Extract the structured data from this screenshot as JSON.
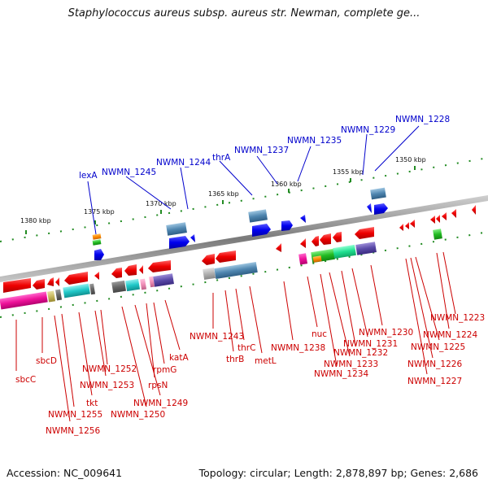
{
  "title": "Staphylococcus aureus subsp. aureus str. Newman, complete ge...",
  "footer": {
    "accession": "Accession: NC_009641",
    "summary": "Topology: circular; Length: 2,878,897 bp; Genes: 2,686"
  },
  "ruler": {
    "ticks": [
      "1380 kbp",
      "1375 kbp",
      "1370 kbp",
      "1365 kbp",
      "1360 kbp",
      "1355 kbp",
      "1350 kbp"
    ]
  },
  "upper_labels": [
    "lexA",
    "NWMN_1245",
    "NWMN_1244",
    "thrA",
    "NWMN_1237",
    "NWMN_1235",
    "NWMN_1229",
    "NWMN_1228"
  ],
  "lower_labels": [
    "sbcC",
    "sbcD",
    "NWMN_1256",
    "NWMN_1255",
    "tkt",
    "NWMN_1253",
    "NWMN_1252",
    "NWMN_1250",
    "NWMN_1249",
    "rpsN",
    "rpmG",
    "katA",
    "NWMN_1243",
    "thrB",
    "thrC",
    "metL",
    "NWMN_1238",
    "nuc",
    "NWMN_1234",
    "NWMN_1233",
    "NWMN_1232",
    "NWMN_1231",
    "NWMN_1230",
    "NWMN_1227",
    "NWMN_1226",
    "NWMN_1225",
    "NWMN_1224",
    "NWMN_1223"
  ],
  "colors": {
    "forward_gene": "#0000ee",
    "reverse_gene": "#ee0000",
    "forward_label": "#0000cc",
    "reverse_label": "#cc0000",
    "backbone": "#8a8a8a",
    "tick": "#228b22"
  }
}
